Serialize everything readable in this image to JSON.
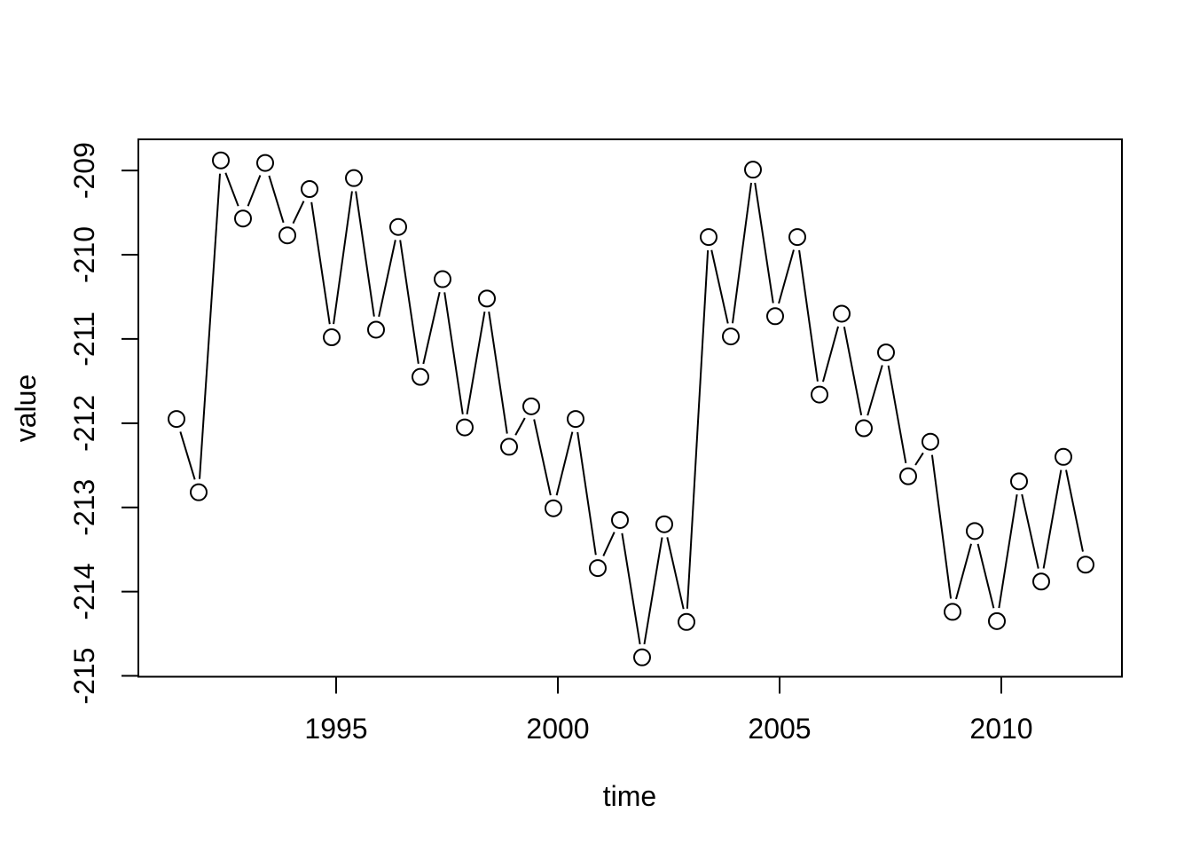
{
  "figure": {
    "background_color": "#ffffff",
    "foreground_color": "#000000",
    "plot_area_fill": "#ffffff"
  },
  "chart_data": {
    "type": "line",
    "title": "",
    "xlabel": "time",
    "ylabel": "value",
    "grid": false,
    "legend_position": "none",
    "marker": "open-circle",
    "marker_color": "#000000",
    "line_color": "#000000",
    "line_style": "solid-with-gaps-around-markers",
    "x_ticks": [
      1995,
      2000,
      2005,
      2010
    ],
    "y_ticks": [
      -215,
      -214,
      -213,
      -212,
      -211,
      -210,
      -209
    ],
    "xlim": [
      1990.54,
      2012.72
    ],
    "ylim": [
      -215.01,
      -208.63
    ],
    "y_tick_label_rotation": "vertical",
    "series": [
      {
        "name": "value",
        "x": [
          1991.4,
          1991.9,
          1992.4,
          1992.9,
          1993.4,
          1993.9,
          1994.4,
          1994.9,
          1995.4,
          1995.9,
          1996.4,
          1996.9,
          1997.4,
          1997.9,
          1998.4,
          1998.9,
          1999.4,
          1999.9,
          2000.4,
          2000.9,
          2001.4,
          2001.9,
          2002.4,
          2002.9,
          2003.4,
          2003.9,
          2004.4,
          2004.9,
          2005.4,
          2005.9,
          2006.4,
          2006.9,
          2007.4,
          2007.9,
          2008.4,
          2008.9,
          2009.4,
          2009.9,
          2010.4,
          2010.9,
          2011.4,
          2011.9
        ],
        "y": [
          -211.95,
          -212.82,
          -208.88,
          -209.57,
          -208.91,
          -209.77,
          -209.22,
          -210.98,
          -209.09,
          -210.89,
          -209.67,
          -211.45,
          -210.29,
          -212.05,
          -210.52,
          -212.28,
          -211.8,
          -213.01,
          -211.95,
          -213.72,
          -213.15,
          -214.78,
          -213.2,
          -214.36,
          -209.79,
          -210.97,
          -208.99,
          -210.73,
          -209.79,
          -211.66,
          -210.7,
          -212.06,
          -211.16,
          -212.63,
          -212.22,
          -214.24,
          -213.28,
          -214.35,
          -212.69,
          -213.88,
          -212.4,
          -213.68
        ]
      }
    ]
  }
}
